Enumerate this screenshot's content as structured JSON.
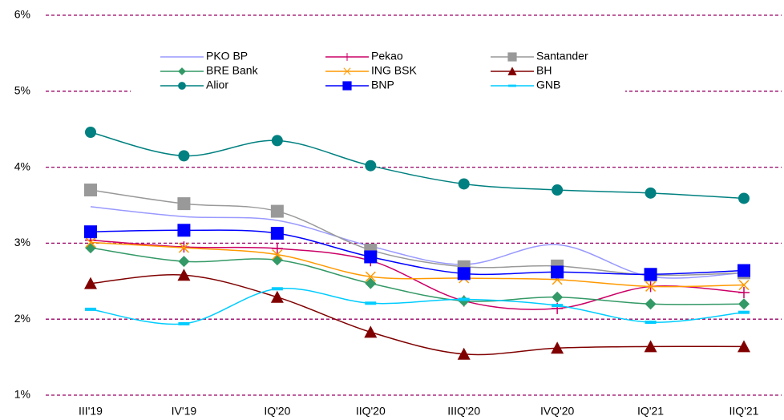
{
  "chart_data": {
    "type": "line",
    "categories": [
      "III'19",
      "IV'19",
      "IQ'20",
      "IIQ'20",
      "IIIQ'20",
      "IVQ'20",
      "IQ'21",
      "IIQ'21"
    ],
    "ylim": [
      1,
      6
    ],
    "yticks": [
      {
        "value": 1,
        "label": "1%"
      },
      {
        "value": 2,
        "label": "2%"
      },
      {
        "value": 3,
        "label": "3%"
      },
      {
        "value": 4,
        "label": "4%"
      },
      {
        "value": 5,
        "label": "5%"
      },
      {
        "value": 6,
        "label": "6%"
      }
    ],
    "grid": true,
    "grid_color": "#990066",
    "legend": "top",
    "series": [
      {
        "name": "PKO BP",
        "color": "#9999ff",
        "marker": "none",
        "values": [
          3.48,
          3.35,
          3.3,
          2.96,
          2.72,
          2.98,
          2.56,
          2.61
        ]
      },
      {
        "name": "Pekao",
        "color": "#cc0066",
        "marker": "plus",
        "values": [
          3.04,
          2.95,
          2.93,
          2.77,
          2.24,
          2.14,
          2.43,
          2.35
        ]
      },
      {
        "name": "Santander",
        "color": "#999999",
        "marker": "square",
        "values": [
          3.7,
          3.52,
          3.42,
          2.91,
          2.69,
          2.7,
          2.58,
          2.61
        ]
      },
      {
        "name": "BRE Bank",
        "color": "#339966",
        "marker": "diamond",
        "values": [
          2.94,
          2.76,
          2.78,
          2.47,
          2.24,
          2.29,
          2.2,
          2.2
        ]
      },
      {
        "name": "ING BSK",
        "color": "#ff9900",
        "marker": "x",
        "values": [
          3.01,
          2.94,
          2.85,
          2.56,
          2.54,
          2.52,
          2.43,
          2.45
        ]
      },
      {
        "name": "BH",
        "color": "#800000",
        "marker": "triangle",
        "values": [
          2.47,
          2.58,
          2.29,
          1.83,
          1.54,
          1.62,
          1.64,
          1.64
        ]
      },
      {
        "name": "Alior",
        "color": "#008080",
        "marker": "circle",
        "values": [
          4.46,
          4.15,
          4.35,
          4.02,
          3.78,
          3.7,
          3.66,
          3.59
        ]
      },
      {
        "name": "BNP",
        "color": "#0000ff",
        "marker": "square",
        "values": [
          3.15,
          3.17,
          3.13,
          2.82,
          2.6,
          2.62,
          2.59,
          2.64
        ]
      },
      {
        "name": "GNB",
        "color": "#00ccff",
        "marker": "dash",
        "values": [
          2.13,
          1.94,
          2.4,
          2.21,
          2.26,
          2.18,
          1.96,
          2.09
        ]
      }
    ]
  }
}
